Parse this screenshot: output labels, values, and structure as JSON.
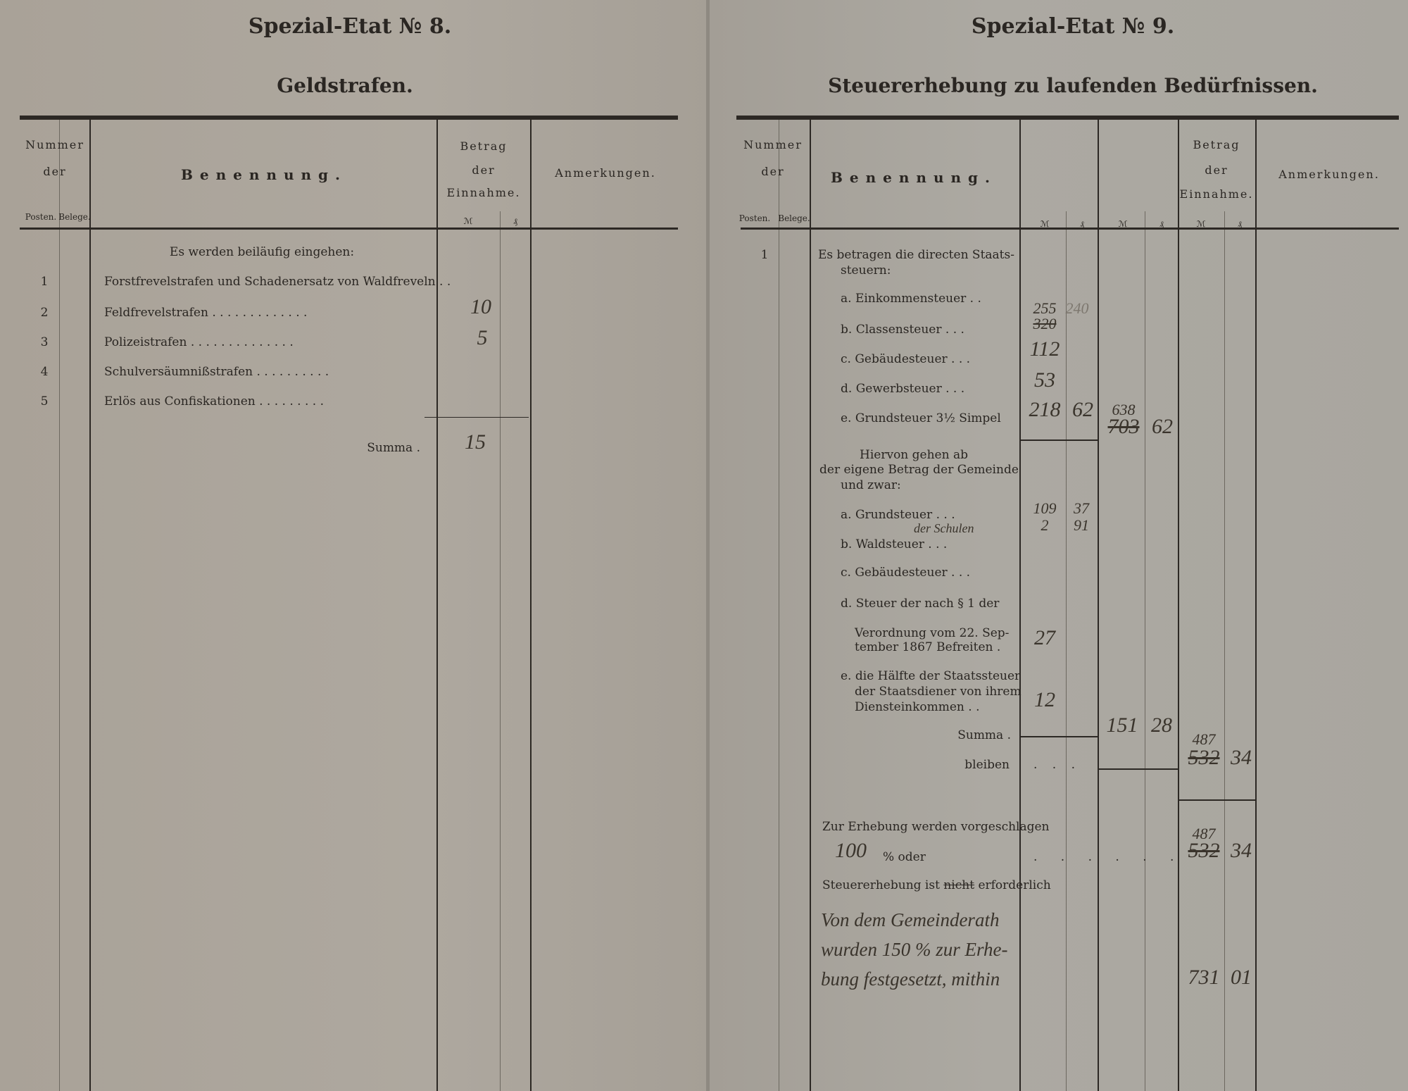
{
  "left": {
    "title": "Spezial-Etat № 8.",
    "subtitle": "Geldstrafen.",
    "header": {
      "nummer": "Nummer",
      "der": "der",
      "posten": "Posten.",
      "belege": "Belege.",
      "benennung": "Benennung.",
      "betrag": "Betrag",
      "betrag_der": "der",
      "einnahme": "Einnahme.",
      "mark": "ℳ",
      "pfennig": "₰",
      "anmerkungen": "Anmerkungen."
    },
    "intro": "Es werden beiläufig eingehen:",
    "rows": [
      {
        "nr": "1",
        "label": "Forstfrevelstrafen und Schadenersatz von Waldfreveln . .",
        "mark": ""
      },
      {
        "nr": "2",
        "label": "Feldfrevelstrafen . . . . . . . . . . . . .",
        "mark": "10"
      },
      {
        "nr": "3",
        "label": "Polizeistrafen . . . . . . . . . . . . . .",
        "mark": "5"
      },
      {
        "nr": "4",
        "label": "Schulversäumnißstrafen . . . . . . . . . .",
        "mark": ""
      },
      {
        "nr": "5",
        "label": "Erlös aus Confiskationen . . . . . . . . .",
        "mark": ""
      }
    ],
    "summa_label": "Summa .",
    "summa_mark": "15"
  },
  "right": {
    "title": "Spezial-Etat № 9.",
    "subtitle": "Steuererhebung zu laufenden Bedürfnissen.",
    "header": {
      "nummer": "Nummer",
      "der": "der",
      "posten": "Posten.",
      "belege": "Belege.",
      "benennung": "Benennung.",
      "betrag": "Betrag",
      "betrag_der": "der",
      "einnahme": "Einnahme.",
      "mark": "ℳ",
      "pfennig": "₰",
      "anmerkungen": "Anmerkungen."
    },
    "posten": "1",
    "intro_1": "Es betragen die directen Staats-",
    "intro_2": "steuern:",
    "taxes": [
      {
        "label": "a. Einkommensteuer . .",
        "mark": "",
        "pf": ""
      },
      {
        "label": "b. Classensteuer . . .",
        "mark": "255",
        "mark_struck": "320",
        "pf": "240"
      },
      {
        "label": "c. Gebäudesteuer . . .",
        "mark": "112",
        "pf": ""
      },
      {
        "label": "d. Gewerbsteuer . . .",
        "mark": "53",
        "pf": ""
      },
      {
        "label": "e. Grundsteuer 3½ Simpel",
        "mark": "218",
        "pf": "62"
      }
    ],
    "total_mark": "638",
    "total_mark_struck": "703",
    "total_pf": "62",
    "deduct_1": "Hiervon gehen ab",
    "deduct_2": "der eigene Betrag der Gemeinde",
    "deduct_3": "und zwar:",
    "deductions": [
      {
        "label": "a. Grundsteuer . . .",
        "mark": "109",
        "pf": "37"
      },
      {
        "label": "b. Waldsteuer . . .",
        "mark": "2",
        "pf": "91",
        "note": "der Schulen"
      },
      {
        "label": "c. Gebäudesteuer . . .",
        "mark": "",
        "pf": ""
      },
      {
        "label": "d. Steuer der nach § 1 der",
        "mark": "",
        "pf": ""
      }
    ],
    "verordnung_1": "Verordnung vom 22. Sep-",
    "verordnung_2": "tember 1867 Befreiten .",
    "verordnung_mark": "27",
    "haelfte_1": "e. die Hälfte der Staatssteuer",
    "haelfte_2": "der Staatsdiener von ihrem",
    "haelfte_3": "Diensteinkommen . .",
    "haelfte_mark": "12",
    "summa_label": "Summa .",
    "summa_mark": "151",
    "summa_pf": "28",
    "bleiben_label": "bleiben",
    "bleiben_dots": ". . .",
    "bleiben_mark": "487",
    "bleiben_mark_struck": "532",
    "bleiben_pf": "34",
    "vorschlag": "Zur Erhebung werden vorgeschlagen",
    "percent_value": "100",
    "percent_label": "% oder",
    "percent_dots": ". . . . . .",
    "vorschlag_mark": "487",
    "vorschlag_mark_struck": "532",
    "vorschlag_pf": "34",
    "nicht_1": "Steuererhebung ist",
    "nicht_struck": "nicht",
    "nicht_2": "erforderlich",
    "note_lines": [
      "Von dem Gemeinderath",
      "wurden 150 % zur Erhe-",
      "bung festgesetzt, mithin"
    ],
    "note_mark": "731",
    "note_pf": "01"
  }
}
